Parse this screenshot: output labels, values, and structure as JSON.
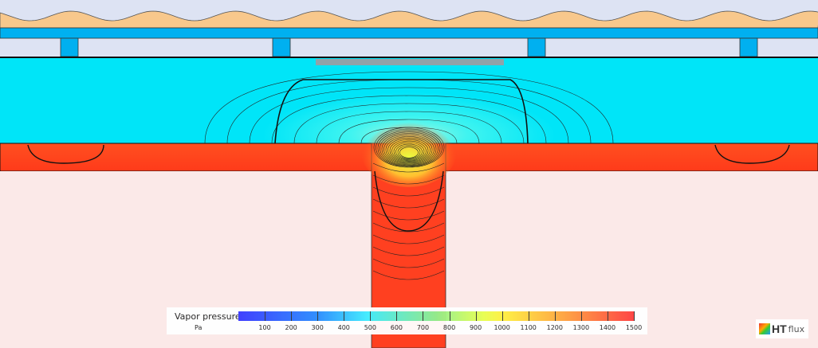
{
  "legend": {
    "title": "Vapor pressure",
    "unit": "Pa",
    "ticks": [
      "100",
      "200",
      "300",
      "400",
      "500",
      "600",
      "700",
      "800",
      "900",
      "1000",
      "1100",
      "1200",
      "1300",
      "1400",
      "1500"
    ],
    "range": [
      0,
      1500
    ],
    "colors": {
      "low": "#3a3aff",
      "mid": "#90f090",
      "high": "#ff4040"
    }
  },
  "logo": {
    "brand": "HTflux"
  },
  "materials": {
    "air": "#dde3f3",
    "tiles": "#f8c88c",
    "battens": "#00b0f0",
    "insulation": "#00e5f8",
    "warm_layer": "#ff4a1e",
    "interior": "#fbe9e8"
  }
}
